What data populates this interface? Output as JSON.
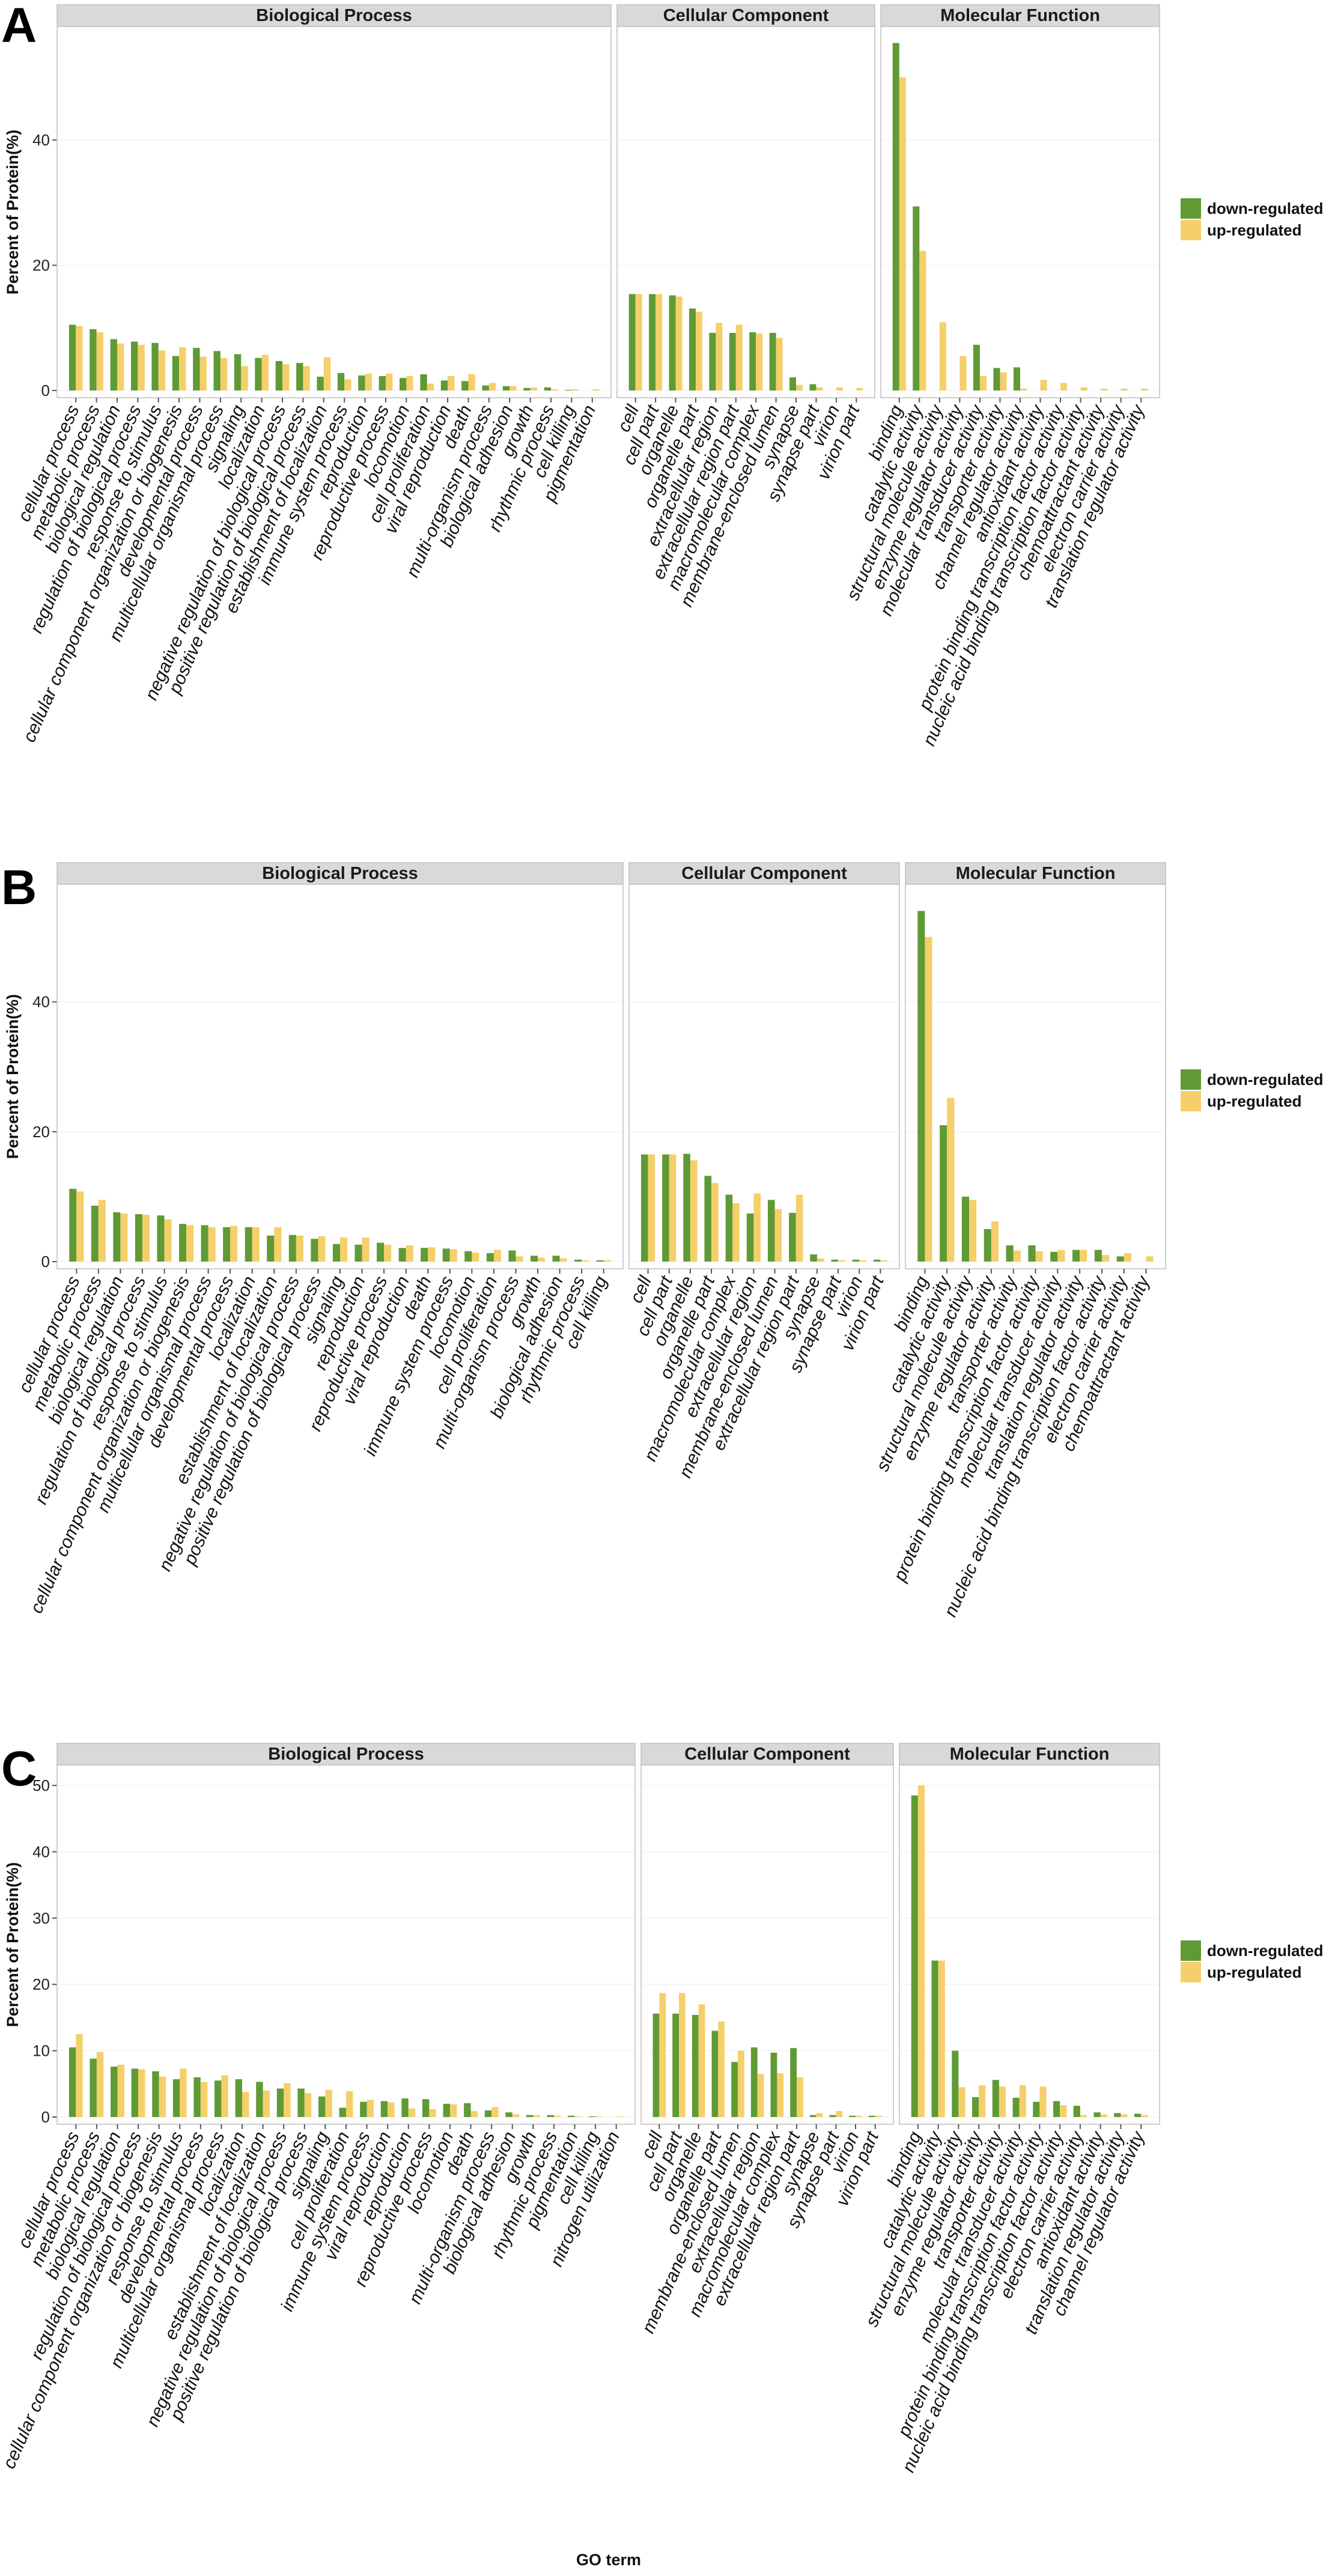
{
  "colors": {
    "down": "#5f9a34",
    "up": "#f5cf6a",
    "strip": "#d9d9d9",
    "frame": "#bfbfbf",
    "grid": "#eeeeee"
  },
  "legend": {
    "down_label": "down-regulated",
    "up_label": "up-regulated"
  },
  "x_axis_title": "GO term",
  "chart_data": [
    {
      "type": "bar",
      "panel": "A",
      "ylabel": "Percent of Protein(%)",
      "xlabel": "",
      "ylim": [
        0,
        57
      ],
      "yticks": [
        0,
        20,
        40
      ],
      "series_names": [
        "down-regulated",
        "up-regulated"
      ],
      "facets": [
        {
          "title": "Biological Process",
          "categories": [
            "cellular process",
            "metabolic process",
            "biological regulation",
            "regulation of biological process",
            "response to stimulus",
            "cellular component organization or biogenesis",
            "developmental process",
            "multicellular organismal process",
            "signaling",
            "localization",
            "negative regulation of biological process",
            "positive regulation of biological process",
            "establishment of localization",
            "immune system process",
            "reproduction",
            "reproductive process",
            "locomotion",
            "cell proliferation",
            "viral reproduction",
            "death",
            "multi-organism process",
            "biological adhesion",
            "growth",
            "rhythmic process",
            "cell killing",
            "pigmentation"
          ],
          "down": [
            10.5,
            9.8,
            8.2,
            7.8,
            7.6,
            5.5,
            6.8,
            6.3,
            5.8,
            5.2,
            4.7,
            4.4,
            2.2,
            2.8,
            2.4,
            2.3,
            2.0,
            2.6,
            1.6,
            1.5,
            0.8,
            0.7,
            0.4,
            0.5,
            0.1,
            0.0
          ],
          "up": [
            10.3,
            9.3,
            7.5,
            7.3,
            6.4,
            6.9,
            5.4,
            5.2,
            3.9,
            5.7,
            4.2,
            3.9,
            5.3,
            1.8,
            2.7,
            2.7,
            2.3,
            1.1,
            2.3,
            2.6,
            1.2,
            0.7,
            0.5,
            0.2,
            0.2,
            0.2
          ]
        },
        {
          "title": "Cellular Component",
          "categories": [
            "cell",
            "cell part",
            "organelle",
            "organelle part",
            "extracellular region",
            "extracellular region part",
            "macromolecular complex",
            "membrane-enclosed lumen",
            "synapse",
            "synapse part",
            "virion",
            "virion part"
          ],
          "down": [
            15.4,
            15.4,
            15.2,
            13.1,
            9.2,
            9.2,
            9.3,
            9.2,
            2.1,
            1.0,
            0.0,
            0.0
          ],
          "up": [
            15.4,
            15.4,
            15.0,
            12.6,
            10.8,
            10.5,
            9.1,
            8.4,
            0.9,
            0.5,
            0.5,
            0.4
          ]
        },
        {
          "title": "Molecular Function",
          "categories": [
            "binding",
            "catalytic activity",
            "structural molecule activity",
            "enzyme regulator activity",
            "molecular transducer activity",
            "transporter activity",
            "channel regulator activity",
            "antioxidant activity",
            "protein binding transcription factor activity",
            "nucleic acid binding transcription factor activity",
            "chemoattractant activity",
            "electron carrier activity",
            "translation regulator activity"
          ],
          "down": [
            55.5,
            29.4,
            0.0,
            0.0,
            7.3,
            3.6,
            3.7,
            0.0,
            0.0,
            0.0,
            0.0,
            0.0,
            0.0
          ],
          "up": [
            50.0,
            22.3,
            10.9,
            5.5,
            2.3,
            2.9,
            0.3,
            1.7,
            1.2,
            0.5,
            0.3,
            0.3,
            0.3
          ]
        }
      ]
    },
    {
      "type": "bar",
      "panel": "B",
      "ylabel": "Percent of Protein(%)",
      "xlabel": "",
      "ylim": [
        0,
        57
      ],
      "yticks": [
        0,
        20,
        40
      ],
      "series_names": [
        "down-regulated",
        "up-regulated"
      ],
      "facets": [
        {
          "title": "Biological Process",
          "categories": [
            "cellular process",
            "metabolic process",
            "biological regulation",
            "regulation of biological process",
            "response to stimulus",
            "cellular component organization or biogenesis",
            "multicellular organismal process",
            "developmental process",
            "localization",
            "establishment of localization",
            "negative regulation of biological process",
            "positive regulation of biological process",
            "signaling",
            "reproduction",
            "reproductive process",
            "viral reproduction",
            "death",
            "immune system process",
            "locomotion",
            "cell proliferation",
            "multi-organism process",
            "growth",
            "biological adhesion",
            "rhythmic process",
            "cell killing"
          ],
          "down": [
            11.2,
            8.6,
            7.6,
            7.3,
            7.1,
            5.8,
            5.6,
            5.3,
            5.3,
            4.0,
            4.1,
            3.5,
            2.7,
            2.6,
            2.9,
            2.1,
            2.1,
            2.0,
            1.6,
            1.3,
            1.7,
            0.9,
            0.9,
            0.3,
            0.2
          ],
          "up": [
            10.8,
            9.5,
            7.4,
            7.2,
            6.5,
            5.6,
            5.3,
            5.5,
            5.3,
            5.3,
            4.0,
            3.9,
            3.7,
            3.7,
            2.6,
            2.5,
            2.2,
            1.9,
            1.4,
            1.8,
            0.8,
            0.6,
            0.5,
            0.2,
            0.2
          ]
        },
        {
          "title": "Cellular Component",
          "categories": [
            "cell",
            "cell part",
            "organelle",
            "organelle part",
            "macromolecular complex",
            "extracellular region",
            "membrane-enclosed lumen",
            "extracellular region part",
            "synapse",
            "synapse part",
            "virion",
            "virion part"
          ],
          "down": [
            16.5,
            16.5,
            16.6,
            13.2,
            10.3,
            7.4,
            9.5,
            7.5,
            1.1,
            0.3,
            0.3,
            0.3
          ],
          "up": [
            16.5,
            16.5,
            15.6,
            12.1,
            9.0,
            10.5,
            8.1,
            10.3,
            0.5,
            0.2,
            0.2,
            0.2
          ]
        },
        {
          "title": "Molecular Function",
          "categories": [
            "binding",
            "catalytic activity",
            "structural molecule activity",
            "enzyme regulator activity",
            "transporter activity",
            "protein binding transcription factor activity",
            "molecular transducer activity",
            "translation regulator activity",
            "nucleic acid binding transcription factor activity",
            "electron carrier activity",
            "chemoattractant activity"
          ],
          "down": [
            54.0,
            21.0,
            10.0,
            5.0,
            2.5,
            2.5,
            1.5,
            1.8,
            1.8,
            0.8,
            0.0
          ],
          "up": [
            50.0,
            25.2,
            9.5,
            6.2,
            1.7,
            1.6,
            1.8,
            1.8,
            1.0,
            1.3,
            0.8
          ]
        }
      ]
    },
    {
      "type": "bar",
      "panel": "C",
      "ylabel": "Percent of Protein(%)",
      "xlabel": "GO term",
      "ylim": [
        0,
        52
      ],
      "yticks": [
        0,
        10,
        20,
        30,
        40,
        50
      ],
      "series_names": [
        "down-regulated",
        "up-regulated"
      ],
      "facets": [
        {
          "title": "Biological Process",
          "categories": [
            "cellular process",
            "metabolic process",
            "biological regulation",
            "regulation of biological process",
            "cellular component organization or biogenesis",
            "response to stimulus",
            "developmental process",
            "multicellular organismal process",
            "localization",
            "establishment of localization",
            "negative regulation of biological process",
            "positive regulation of biological process",
            "signaling",
            "cell proliferation",
            "immune system process",
            "viral reproduction",
            "reproduction",
            "reproductive process",
            "locomotion",
            "death",
            "multi-organism process",
            "biological adhesion",
            "growth",
            "rhythmic process",
            "pigmentation",
            "cell killing",
            "nitrogen utilization"
          ],
          "down": [
            10.5,
            8.8,
            7.6,
            7.3,
            6.9,
            5.7,
            6.0,
            5.5,
            5.7,
            5.3,
            4.3,
            4.3,
            3.1,
            1.4,
            2.3,
            2.4,
            2.8,
            2.7,
            2.0,
            2.1,
            1.0,
            0.7,
            0.3,
            0.3,
            0.2,
            0.1,
            0.0
          ],
          "up": [
            12.5,
            9.8,
            7.9,
            7.2,
            6.1,
            7.3,
            5.3,
            6.3,
            3.8,
            4.0,
            5.1,
            3.6,
            4.1,
            3.9,
            2.6,
            2.2,
            1.3,
            1.2,
            1.9,
            0.9,
            1.5,
            0.4,
            0.3,
            0.2,
            0.1,
            0.1,
            0.1
          ]
        },
        {
          "title": "Cellular Component",
          "categories": [
            "cell",
            "cell part",
            "organelle",
            "organelle part",
            "membrane-enclosed lumen",
            "extracellular region",
            "macromolecular complex",
            "extracellular region part",
            "synapse",
            "synapse part",
            "virion",
            "virion part"
          ],
          "down": [
            15.6,
            15.6,
            15.4,
            13.0,
            8.3,
            10.5,
            9.7,
            10.4,
            0.3,
            0.3,
            0.2,
            0.2
          ],
          "up": [
            18.7,
            18.7,
            17.0,
            14.4,
            10.0,
            6.5,
            6.6,
            6.0,
            0.6,
            0.9,
            0.2,
            0.2
          ]
        },
        {
          "title": "Molecular Function",
          "categories": [
            "binding",
            "catalytic activity",
            "structural molecule activity",
            "enzyme regulator activity",
            "transporter activity",
            "molecular transducer activity",
            "protein binding transcription factor activity",
            "nucleic acid binding transcription factor activity",
            "electron carrier activity",
            "antioxidant activity",
            "translation regulator activity",
            "channel regulator activity"
          ],
          "down": [
            48.5,
            23.6,
            10.0,
            3.0,
            5.6,
            2.9,
            2.3,
            2.4,
            1.7,
            0.7,
            0.6,
            0.5
          ],
          "up": [
            50.0,
            23.6,
            4.5,
            4.8,
            4.6,
            4.8,
            4.6,
            1.8,
            0.3,
            0.4,
            0.4,
            0.3
          ]
        }
      ]
    }
  ]
}
